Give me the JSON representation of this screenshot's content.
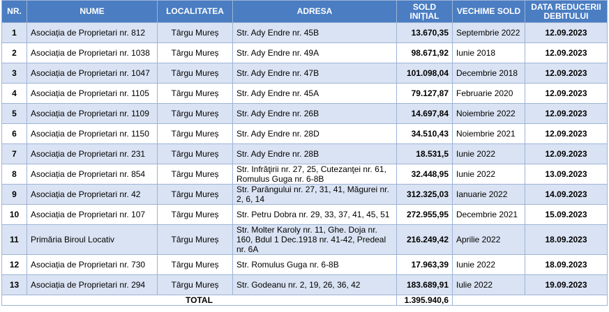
{
  "table": {
    "header": [
      "NR.",
      "NUME",
      "LOCALITATEA",
      "ADRESA",
      "SOLD INIȚIAL",
      "VECHIME SOLD",
      "DATA REDUCERII DEBITULUI"
    ],
    "rows": [
      [
        "1",
        "Asociația de Proprietari nr. 812",
        "Târgu Mureș",
        "Str. Ady Endre nr. 45B",
        "13.670,35",
        "Septembrie 2022",
        "12.09.2023"
      ],
      [
        "2",
        "Asociația de Proprietari nr. 1038",
        "Târgu Mureș",
        "Str. Ady Endre nr. 49A",
        "98.671,92",
        "Iunie 2018",
        "12.09.2023"
      ],
      [
        "3",
        "Asociația de Proprietari nr. 1047",
        "Târgu Mureș",
        "Str. Ady Endre nr. 47B",
        "101.098,04",
        "Decembrie 2018",
        "12.09.2023"
      ],
      [
        "4",
        "Asociația de Proprietari nr. 1105",
        "Târgu Mureș",
        "Str. Ady Endre nr. 45A",
        "79.127,87",
        "Februarie 2020",
        "12.09.2023"
      ],
      [
        "5",
        "Asociația de Proprietari nr. 1109",
        "Târgu Mureș",
        "Str. Ady Endre nr. 26B",
        "14.697,84",
        "Noiembrie 2022",
        "12.09.2023"
      ],
      [
        "6",
        "Asociația de Proprietari nr. 1150",
        "Târgu Mureș",
        "Str. Ady Endre nr. 28D",
        "34.510,43",
        "Noiembrie 2021",
        "12.09.2023"
      ],
      [
        "7",
        "Asociația de Proprietari nr. 231",
        "Târgu Mureș",
        "Str. Ady Endre nr. 28B",
        "18.531,5",
        "Iunie 2022",
        "12.09.2023"
      ],
      [
        "8",
        "Asociația de Proprietari nr. 854",
        "Târgu Mureș",
        "Str. Infrăţirii nr. 27, 25, Cutezanţei nr. 61, Romulus Guga nr. 6-8B",
        "32.448,95",
        "Iunie 2022",
        "13.09.2023"
      ],
      [
        "9",
        "Asociația de Proprietari nr. 42",
        "Târgu Mureș",
        "Str. Parângului nr. 27, 31, 41, Măgurei nr. 2, 6, 14",
        "312.325,03",
        "Ianuarie 2022",
        "14.09.2023"
      ],
      [
        "10",
        "Asociația de Proprietari nr. 107",
        "Târgu Mureș",
        "Str. Petru Dobra nr. 29, 33, 37, 41, 45, 51",
        "272.955,95",
        "Decembrie 2021",
        "15.09.2023"
      ],
      [
        "11",
        "Primăria Biroul Locativ",
        "Târgu Mureș",
        "Str. Molter Karoly nr. 11, Ghe. Doja nr. 160, Bdul 1 Dec.1918 nr. 41-42, Predeal nr. 6A",
        "216.249,42",
        "Aprilie 2022",
        "18.09.2023"
      ],
      [
        "12",
        "Asociația de Proprietari nr. 730",
        "Târgu Mureș",
        "Str. Romulus Guga nr. 6-8B",
        "17.963,39",
        "Iunie 2022",
        "18.09.2023"
      ],
      [
        "13",
        "Asociația de Proprietari nr. 294",
        "Târgu Mureș",
        "Str. Godeanu nr. 2, 19, 26, 36, 42",
        "183.689,91",
        "Iulie 2022",
        "19.09.2023"
      ]
    ],
    "total": {
      "label": "TOTAL",
      "value": "1.395.940,6"
    }
  }
}
